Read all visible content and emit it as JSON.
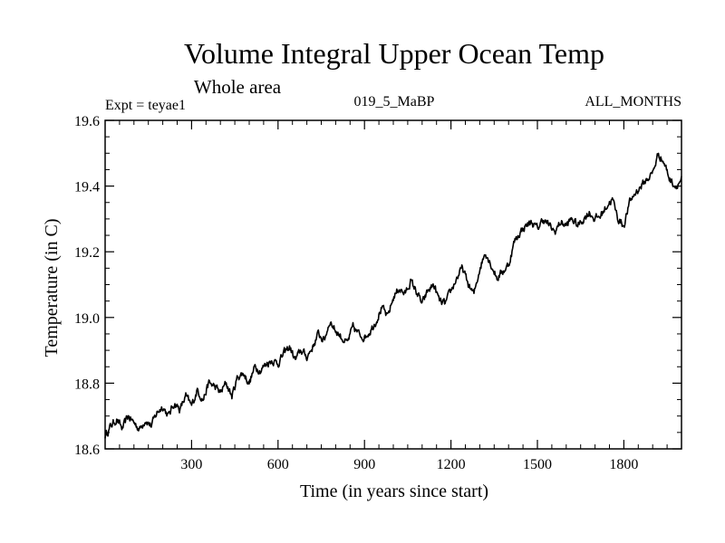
{
  "chart_data": {
    "type": "line",
    "title": "Volume Integral Upper Ocean Temp",
    "subtitle": "Whole area",
    "annotations": {
      "left": "Expt = teyae1",
      "center": "019_5_MaBP",
      "right": "ALL_MONTHS"
    },
    "xlabel": "Time (in years since start)",
    "ylabel": "Temperature (in C)",
    "xlim": [
      0,
      2000
    ],
    "ylim": [
      18.6,
      19.6
    ],
    "xticks": [
      300,
      600,
      900,
      1200,
      1500,
      1800
    ],
    "xtick_labels": [
      "300",
      "600",
      "900",
      "1200",
      "1500",
      "1800"
    ],
    "yticks": [
      18.6,
      18.8,
      19.0,
      19.2,
      19.4,
      19.6
    ],
    "ytick_labels": [
      "18.6",
      "18.8",
      "19.0",
      "19.2",
      "19.4",
      "19.6"
    ],
    "x_minor_step": 50,
    "y_minor_step": 0.05,
    "grid": false,
    "series": [
      {
        "name": "teyae1",
        "color": "#000000",
        "x": [
          0,
          20,
          40,
          60,
          80,
          100,
          120,
          140,
          160,
          180,
          200,
          220,
          240,
          260,
          280,
          300,
          320,
          340,
          360,
          380,
          400,
          420,
          440,
          460,
          480,
          500,
          520,
          540,
          560,
          580,
          600,
          620,
          640,
          660,
          680,
          700,
          720,
          740,
          760,
          780,
          800,
          820,
          840,
          860,
          880,
          900,
          920,
          940,
          960,
          980,
          1000,
          1020,
          1040,
          1060,
          1080,
          1100,
          1120,
          1140,
          1160,
          1180,
          1200,
          1220,
          1240,
          1260,
          1280,
          1300,
          1320,
          1340,
          1360,
          1380,
          1400,
          1420,
          1440,
          1460,
          1480,
          1500,
          1520,
          1540,
          1560,
          1580,
          1600,
          1620,
          1640,
          1660,
          1680,
          1700,
          1720,
          1740,
          1760,
          1780,
          1800,
          1820,
          1840,
          1860,
          1880,
          1900,
          1920,
          1940,
          1960,
          1980,
          2000
        ],
        "values": [
          18.64,
          18.67,
          18.69,
          18.66,
          18.7,
          18.68,
          18.66,
          18.69,
          18.67,
          18.71,
          18.73,
          18.7,
          18.74,
          18.72,
          18.76,
          18.73,
          18.78,
          18.75,
          18.8,
          18.79,
          18.77,
          18.8,
          18.76,
          18.82,
          18.83,
          18.8,
          18.85,
          18.84,
          18.86,
          18.87,
          18.86,
          18.89,
          18.91,
          18.87,
          18.9,
          18.88,
          18.91,
          18.95,
          18.93,
          18.99,
          18.96,
          18.94,
          18.92,
          18.97,
          18.95,
          18.94,
          18.96,
          18.99,
          19.03,
          19.0,
          19.06,
          19.09,
          19.07,
          19.11,
          19.08,
          19.04,
          19.08,
          19.1,
          19.05,
          19.04,
          19.08,
          19.12,
          19.15,
          19.1,
          19.07,
          19.15,
          19.2,
          19.16,
          19.12,
          19.14,
          19.16,
          19.23,
          19.26,
          19.28,
          19.29,
          19.27,
          19.3,
          19.28,
          19.26,
          19.29,
          19.28,
          19.3,
          19.28,
          19.3,
          19.32,
          19.3,
          19.31,
          19.34,
          19.36,
          19.3,
          19.28,
          19.35,
          19.38,
          19.4,
          19.42,
          19.44,
          19.5,
          19.47,
          19.42,
          19.4,
          19.42
        ]
      }
    ]
  }
}
